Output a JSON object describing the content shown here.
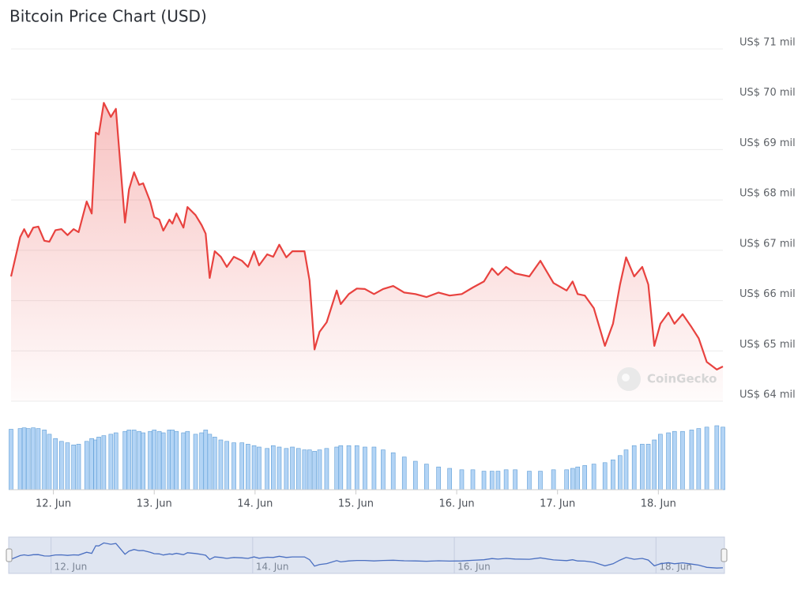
{
  "chart_data": {
    "type": "line",
    "title": "Bitcoin Price Chart (USD)",
    "watermark": "CoinGecko",
    "color": "#e8423f",
    "x": [
      11.58,
      11.67,
      11.71,
      11.75,
      11.8,
      11.85,
      11.91,
      11.96,
      12.02,
      12.08,
      12.14,
      12.2,
      12.25,
      12.33,
      12.38,
      12.42,
      12.45,
      12.5,
      12.57,
      12.62,
      12.71,
      12.75,
      12.8,
      12.85,
      12.89,
      12.96,
      13.0,
      13.05,
      13.09,
      13.15,
      13.18,
      13.22,
      13.29,
      13.33,
      13.41,
      13.47,
      13.51,
      13.55,
      13.6,
      13.66,
      13.72,
      13.79,
      13.87,
      13.93,
      13.99,
      14.04,
      14.12,
      14.18,
      14.24,
      14.31,
      14.37,
      14.43,
      14.49,
      14.54,
      14.59,
      14.64,
      14.71,
      14.81,
      14.85,
      14.93,
      15.01,
      15.09,
      15.18,
      15.27,
      15.37,
      15.48,
      15.59,
      15.7,
      15.82,
      15.93,
      16.05,
      16.16,
      16.27,
      16.35,
      16.41,
      16.49,
      16.58,
      16.72,
      16.83,
      16.96,
      17.09,
      17.15,
      17.2,
      17.27,
      17.36,
      17.47,
      17.55,
      17.62,
      17.68,
      17.76,
      17.84,
      17.9,
      17.96,
      18.02,
      18.1,
      18.16,
      18.24,
      18.33,
      18.4,
      18.48,
      18.58,
      18.64
    ],
    "values": [
      66.48,
      67.26,
      67.42,
      67.26,
      67.45,
      67.47,
      67.19,
      67.17,
      67.4,
      67.42,
      67.3,
      67.42,
      67.36,
      67.97,
      67.73,
      69.34,
      69.3,
      69.93,
      69.65,
      69.81,
      67.55,
      68.21,
      68.55,
      68.3,
      68.33,
      67.97,
      67.66,
      67.61,
      67.39,
      67.61,
      67.53,
      67.73,
      67.45,
      67.86,
      67.7,
      67.5,
      67.33,
      66.45,
      66.98,
      66.87,
      66.67,
      66.87,
      66.79,
      66.67,
      66.98,
      66.7,
      66.92,
      66.87,
      67.11,
      66.86,
      66.98,
      66.98,
      66.98,
      66.4,
      65.03,
      65.38,
      65.57,
      66.2,
      65.93,
      66.13,
      66.24,
      66.23,
      66.13,
      66.23,
      66.29,
      66.16,
      66.13,
      66.07,
      66.16,
      66.1,
      66.13,
      66.26,
      66.38,
      66.64,
      66.51,
      66.67,
      66.54,
      66.48,
      66.79,
      66.35,
      66.2,
      66.38,
      66.13,
      66.1,
      65.85,
      65.1,
      65.54,
      66.32,
      66.86,
      66.48,
      66.67,
      66.32,
      65.1,
      65.54,
      65.76,
      65.54,
      65.73,
      65.47,
      65.25,
      64.78,
      64.63,
      64.69
    ],
    "xlim": [
      11.58,
      18.64
    ],
    "xticks": [
      {
        "value": 12,
        "label": "12. Jun"
      },
      {
        "value": 13,
        "label": "13. Jun"
      },
      {
        "value": 14,
        "label": "14. Jun"
      },
      {
        "value": 15,
        "label": "15. Jun"
      },
      {
        "value": 16,
        "label": "16. Jun"
      },
      {
        "value": 17,
        "label": "17. Jun"
      },
      {
        "value": 18,
        "label": "18. Jun"
      }
    ],
    "ylim": [
      64,
      71
    ],
    "yticks": [
      {
        "value": 64,
        "label": "US$ 64 mil"
      },
      {
        "value": 65,
        "label": "US$ 65 mil"
      },
      {
        "value": 66,
        "label": "US$ 66 mil"
      },
      {
        "value": 67,
        "label": "US$ 67 mil"
      },
      {
        "value": 68,
        "label": "US$ 68 mil"
      },
      {
        "value": 69,
        "label": "US$ 69 mil"
      },
      {
        "value": 70,
        "label": "US$ 70 mil"
      },
      {
        "value": 71,
        "label": "US$ 71 mil"
      }
    ],
    "grid": true,
    "volume": {
      "color": "#b3d4f5",
      "edge": "#5b9bd5",
      "ylim": [
        0,
        100
      ],
      "values": [
        85,
        86,
        87,
        86,
        87,
        86,
        84,
        78,
        72,
        68,
        66,
        63,
        64,
        68,
        72,
        70,
        74,
        76,
        78,
        80,
        82,
        84,
        84,
        82,
        80,
        82,
        84,
        82,
        80,
        84,
        84,
        82,
        80,
        82,
        78,
        80,
        84,
        78,
        74,
        70,
        68,
        66,
        66,
        64,
        62,
        60,
        58,
        62,
        60,
        58,
        60,
        58,
        56,
        56,
        54,
        56,
        58,
        60,
        62,
        62,
        62,
        60,
        60,
        56,
        52,
        46,
        40,
        36,
        32,
        30,
        28,
        28,
        26,
        26,
        26,
        28,
        28,
        26,
        26,
        28,
        28,
        30,
        32,
        34,
        36,
        38,
        42,
        48,
        56,
        62,
        64,
        64,
        70,
        78,
        80,
        82,
        82,
        84,
        86,
        88,
        90,
        88
      ]
    }
  }
}
